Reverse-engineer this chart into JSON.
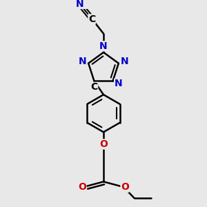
{
  "background_color": "#e8e8e8",
  "bond_color": "#000000",
  "nitrogen_color": "#0000cc",
  "oxygen_color": "#cc0000",
  "carbon_color": "#000000",
  "line_width": 1.8,
  "font_size_atom": 10,
  "fig_size": [
    3.0,
    3.0
  ],
  "dpi": 100,
  "xlim": [
    -2.5,
    2.5
  ],
  "ylim": [
    -4.5,
    4.5
  ]
}
